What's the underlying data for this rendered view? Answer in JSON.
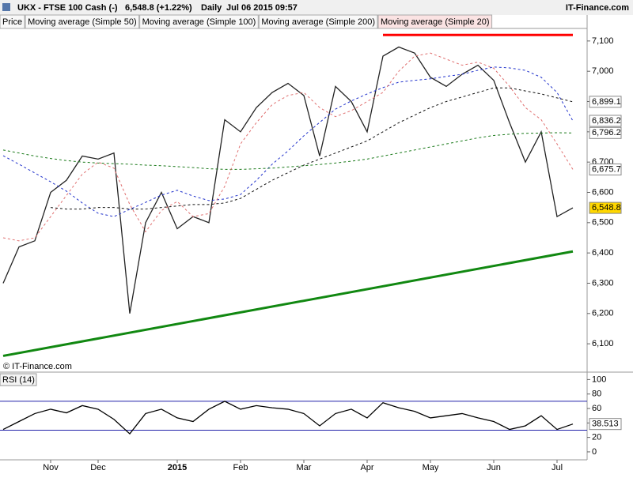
{
  "chart_data": [
    {
      "type": "line",
      "title": "UKX - FTSE 100 Cash (-)",
      "subtitle": "6,548.8 (+1.22%)",
      "period": "Daily",
      "timestamp": "Jul 06 2015 09:57",
      "source": "IT-Finance.com",
      "watermark": "© IT-Finance.com",
      "categories": [
        null,
        null,
        null,
        "Nov",
        null,
        null,
        "Dec",
        null,
        null,
        null,
        null,
        "2015",
        null,
        null,
        null,
        "Feb",
        null,
        null,
        null,
        "Mar",
        null,
        null,
        null,
        "Apr",
        null,
        null,
        null,
        "May",
        null,
        null,
        null,
        "Jun",
        null,
        null,
        null,
        "Jul",
        null
      ],
      "series": [
        {
          "name": "Price",
          "color": "#222222",
          "values": [
            6300,
            6420,
            6440,
            6600,
            6640,
            6720,
            6710,
            6730,
            6200,
            6500,
            6600,
            6480,
            6520,
            6500,
            6840,
            6800,
            6880,
            6930,
            6960,
            6920,
            6720,
            6950,
            6900,
            6800,
            7050,
            7080,
            7060,
            6980,
            6950,
            6990,
            7020,
            6970,
            6830,
            6700,
            6800,
            6520,
            6548.8
          ],
          "value_labels": [
            null,
            null,
            null,
            null,
            null,
            null,
            null,
            null,
            null,
            null,
            null,
            null,
            null,
            null,
            null,
            null,
            null,
            null,
            null,
            null,
            null,
            null,
            null,
            null,
            null,
            null,
            null,
            null,
            null,
            null,
            null,
            null,
            null,
            null,
            null,
            null,
            "6,548.8"
          ]
        },
        {
          "name": "Moving average (Simple 50)",
          "color": "#2233cc",
          "values": [
            6721,
            6693,
            6664,
            6635,
            6604,
            6565,
            6531,
            6520,
            6544,
            6567,
            6591,
            6607,
            6588,
            6573,
            6578,
            6593,
            6640,
            6693,
            6737,
            6787,
            6831,
            6875,
            6902,
            6925,
            6946,
            6964,
            6970,
            6975,
            6983,
            6990,
            7003,
            7014,
            7011,
            7003,
            6980,
            6930,
            6836.2
          ],
          "value_labels": [
            null,
            null,
            null,
            null,
            null,
            null,
            null,
            null,
            null,
            null,
            null,
            null,
            null,
            null,
            null,
            null,
            null,
            null,
            null,
            null,
            null,
            null,
            null,
            null,
            null,
            null,
            null,
            null,
            null,
            null,
            null,
            null,
            null,
            null,
            null,
            null,
            "6,836.2"
          ]
        },
        {
          "name": "Moving average (Simple 100)",
          "color": "#111111",
          "values": [
            null,
            null,
            null,
            6550,
            6545,
            6545,
            6550,
            6550,
            6545,
            6545,
            6550,
            6555,
            6560,
            6560,
            6565,
            6580,
            6610,
            6640,
            6665,
            6690,
            6710,
            6730,
            6750,
            6770,
            6800,
            6830,
            6855,
            6880,
            6900,
            6915,
            6930,
            6945,
            6945,
            6935,
            6925,
            6912,
            6899.1
          ],
          "value_labels": [
            null,
            null,
            null,
            null,
            null,
            null,
            null,
            null,
            null,
            null,
            null,
            null,
            null,
            null,
            null,
            null,
            null,
            null,
            null,
            null,
            null,
            null,
            null,
            null,
            null,
            null,
            null,
            null,
            null,
            null,
            null,
            null,
            null,
            null,
            null,
            null,
            "6,899.1"
          ]
        },
        {
          "name": "Moving average (Simple 200)",
          "color": "#1a7a1a",
          "values": [
            6740,
            6730,
            6720,
            6712,
            6705,
            6700,
            6697,
            6695,
            6693,
            6690,
            6688,
            6685,
            6682,
            6678,
            6676,
            6676,
            6678,
            6680,
            6684,
            6688,
            6692,
            6697,
            6703,
            6710,
            6720,
            6730,
            6740,
            6750,
            6760,
            6770,
            6780,
            6788,
            6792,
            6795,
            6796,
            6797,
            6796.2
          ],
          "value_labels": [
            null,
            null,
            null,
            null,
            null,
            null,
            null,
            null,
            null,
            null,
            null,
            null,
            null,
            null,
            null,
            null,
            null,
            null,
            null,
            null,
            null,
            null,
            null,
            null,
            null,
            null,
            null,
            null,
            null,
            null,
            null,
            null,
            null,
            null,
            null,
            null,
            "6,796.2"
          ]
        },
        {
          "name": "Moving average (Simple 20)",
          "color": "#e07070",
          "values": [
            6450,
            6440,
            6450,
            6520,
            6590,
            6660,
            6700,
            6680,
            6560,
            6470,
            6540,
            6570,
            6520,
            6530,
            6620,
            6760,
            6830,
            6890,
            6920,
            6930,
            6880,
            6850,
            6870,
            6900,
            6930,
            7000,
            7050,
            7060,
            7040,
            7020,
            7030,
            7010,
            6950,
            6880,
            6840,
            6760,
            6675.7
          ],
          "value_labels": [
            null,
            null,
            null,
            null,
            null,
            null,
            null,
            null,
            null,
            null,
            null,
            null,
            null,
            null,
            null,
            null,
            null,
            null,
            null,
            null,
            null,
            null,
            null,
            null,
            null,
            null,
            null,
            null,
            null,
            null,
            null,
            null,
            null,
            null,
            null,
            null,
            "6,675.7"
          ]
        }
      ],
      "trendlines": [
        {
          "color": "#ff0000",
          "x": [
            24,
            36
          ],
          "values": [
            7120,
            7120
          ]
        },
        {
          "color": "#118811",
          "x": [
            0,
            36
          ],
          "values": [
            6060,
            6405
          ]
        }
      ],
      "ylim": [
        6009,
        7144
      ],
      "yticks": [
        {
          "value": 6100,
          "label": "6,100"
        },
        {
          "value": 6200,
          "label": "6,200"
        },
        {
          "value": 6300,
          "label": "6,300"
        },
        {
          "value": 6400,
          "label": "6,400"
        },
        {
          "value": 6500,
          "label": "6,500"
        },
        {
          "value": 6600,
          "label": "6,600"
        },
        {
          "value": 6700,
          "label": "6,700"
        },
        {
          "value": 6800,
          "label": "6,800"
        },
        {
          "value": 6900,
          "label": "6,900"
        },
        {
          "value": 7000,
          "label": "7,000"
        },
        {
          "value": 7100,
          "label": "7,100"
        }
      ],
      "grid": false
    },
    {
      "type": "line",
      "title": "RSI (14)",
      "series": [
        {
          "name": "RSI (14)",
          "color": "#000000",
          "values": [
            31,
            42,
            53,
            59,
            54,
            64,
            59,
            45,
            25,
            53,
            59,
            47,
            42,
            59,
            70,
            59,
            64,
            61,
            59,
            53,
            36,
            53,
            59,
            47,
            68,
            61,
            56,
            47,
            50,
            53,
            47,
            42,
            31,
            36,
            50,
            31,
            38.513
          ]
        }
      ],
      "bands": [
        30,
        70
      ],
      "band_color": "#2222aa",
      "ylim": [
        -11,
        107
      ],
      "yticks": [
        0,
        20,
        40,
        60,
        80,
        100
      ],
      "grid": false
    }
  ]
}
